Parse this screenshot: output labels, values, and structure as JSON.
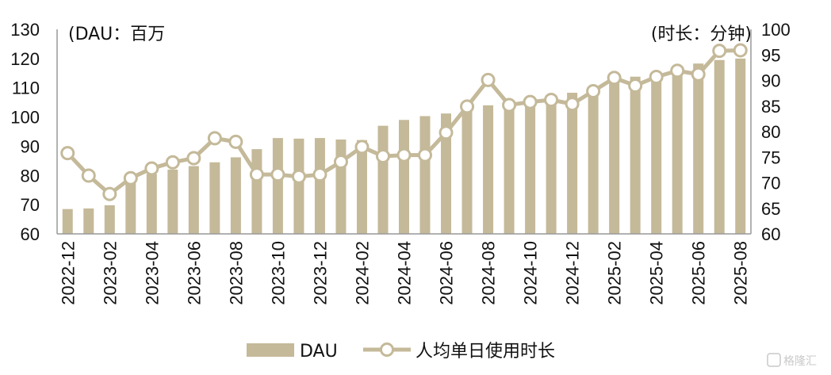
{
  "chart_data": {
    "type": "bar+line",
    "title": "",
    "left_axis_unit": "(DAU：百万",
    "right_axis_unit": "(时长：分钟)",
    "left_ylim": [
      60,
      130
    ],
    "left_ticks": [
      60,
      70,
      80,
      90,
      100,
      110,
      120,
      130
    ],
    "right_ylim": [
      60,
      100
    ],
    "right_ticks": [
      60,
      65,
      70,
      75,
      80,
      85,
      90,
      95,
      100
    ],
    "categories": [
      "2022-12",
      "2023-01",
      "2023-02",
      "2023-03",
      "2023-04",
      "2023-05",
      "2023-06",
      "2023-07",
      "2023-08",
      "2023-09",
      "2023-10",
      "2023-11",
      "2023-12",
      "2024-01",
      "2024-02",
      "2024-03",
      "2024-04",
      "2024-05",
      "2024-06",
      "2024-07",
      "2024-08",
      "2024-09",
      "2024-10",
      "2024-11",
      "2024-12",
      "2025-01",
      "2025-02",
      "2025-03",
      "2025-04",
      "2025-05",
      "2025-06",
      "2025-07",
      "2025-08"
    ],
    "x_tick_labels": [
      "2022-12",
      "",
      "2023-02",
      "",
      "2023-04",
      "",
      "2023-06",
      "",
      "2023-08",
      "",
      "2023-10",
      "",
      "2023-12",
      "",
      "2024-02",
      "",
      "2024-04",
      "",
      "2024-06",
      "",
      "2024-08",
      "",
      "2024-10",
      "",
      "2024-12",
      "",
      "2025-02",
      "",
      "2025-04",
      "",
      "2025-06",
      "",
      "2025-08"
    ],
    "series": [
      {
        "name": "DAU",
        "kind": "bar",
        "axis": "left",
        "color": "#c4b999",
        "values": [
          68.5,
          68.7,
          69.8,
          78.5,
          80.5,
          82.0,
          83.2,
          84.5,
          86.2,
          89.0,
          92.8,
          92.6,
          92.8,
          92.3,
          92.1,
          97.0,
          99.0,
          100.3,
          101.2,
          103.8,
          104.0,
          105.5,
          106.2,
          107.2,
          108.3,
          110.0,
          112.0,
          113.8,
          115.0,
          117.3,
          118.3,
          119.5,
          120.0
        ]
      },
      {
        "name": "人均单日使用时长",
        "kind": "line",
        "axis": "right",
        "color": "#c4b999",
        "values": [
          75.8,
          71.4,
          67.8,
          70.9,
          72.8,
          74.0,
          74.8,
          78.7,
          78.0,
          71.6,
          71.6,
          71.2,
          71.6,
          74.1,
          77.0,
          75.2,
          75.4,
          75.4,
          79.8,
          84.9,
          90.1,
          85.2,
          85.8,
          86.2,
          85.4,
          87.9,
          90.5,
          89.0,
          90.7,
          91.9,
          91.2,
          95.8,
          95.9
        ]
      }
    ],
    "grid": false,
    "legend_position": "bottom"
  },
  "colors": {
    "bar": "#c4b999",
    "line": "#c4b999",
    "axis": "#999999",
    "text": "#111111"
  },
  "watermark": "格隆汇"
}
